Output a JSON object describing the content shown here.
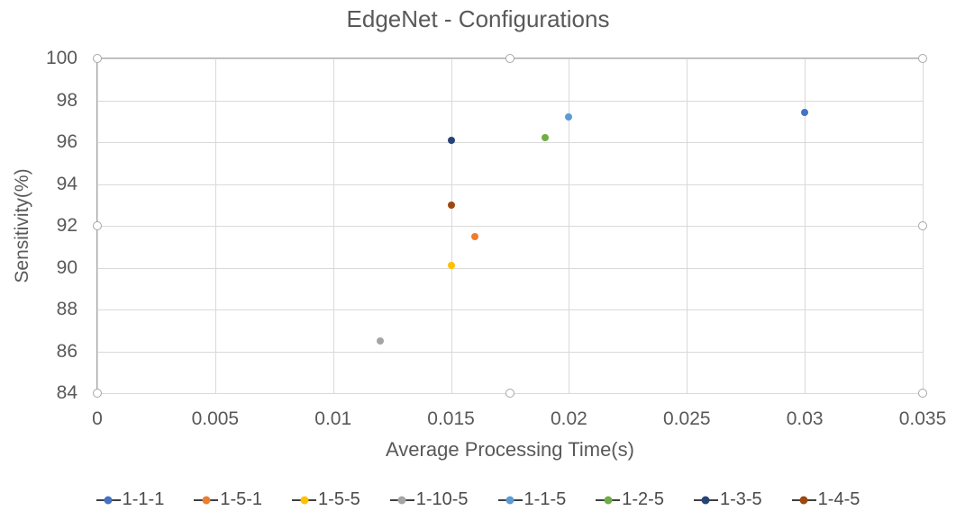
{
  "chart_data": {
    "type": "scatter",
    "title": "EdgeNet - Configurations",
    "xlabel": "Average Processing Time(s)",
    "ylabel": "Sensitivity(%)",
    "xlim": [
      0,
      0.035
    ],
    "ylim": [
      84,
      100
    ],
    "x_tick_values": [
      0,
      0.005,
      0.01,
      0.015,
      0.02,
      0.025,
      0.03,
      0.035
    ],
    "x_tick_labels": [
      "0",
      "0.005",
      "0.01",
      "0.015",
      "0.02",
      "0.025",
      "0.03",
      "0.035"
    ],
    "y_tick_values": [
      100,
      98,
      96,
      94,
      92,
      90,
      88,
      86,
      84
    ],
    "y_tick_labels": [
      "100",
      "98",
      "96",
      "94",
      "92",
      "90",
      "88",
      "86",
      "84"
    ],
    "grid": true,
    "legend_position": "bottom",
    "series": [
      {
        "name": "1-1-1",
        "color": "#4472C4",
        "points": [
          [
            0.03,
            97.4
          ]
        ]
      },
      {
        "name": "1-5-1",
        "color": "#ED7D31",
        "points": [
          [
            0.016,
            91.5
          ]
        ]
      },
      {
        "name": "1-5-5",
        "color": "#FFC000",
        "points": [
          [
            0.015,
            90.1
          ]
        ]
      },
      {
        "name": "1-10-5",
        "color": "#A5A5A5",
        "points": [
          [
            0.012,
            86.5
          ]
        ]
      },
      {
        "name": "1-1-5",
        "color": "#5B9BD5",
        "points": [
          [
            0.02,
            97.2
          ]
        ]
      },
      {
        "name": "1-2-5",
        "color": "#70AD47",
        "points": [
          [
            0.019,
            96.2
          ]
        ]
      },
      {
        "name": "1-3-5",
        "color": "#264478",
        "points": [
          [
            0.015,
            96.1
          ]
        ]
      },
      {
        "name": "1-4-5",
        "color": "#9E480E",
        "points": [
          [
            0.015,
            93.0
          ]
        ]
      }
    ]
  },
  "style": {
    "gridline_color": "#d9d9d9",
    "border_color": "#a6a6a6",
    "text_color": "#595959",
    "legend_text_color": "#4a4a4a",
    "legend_line_color": "#404040",
    "background": "#ffffff"
  },
  "selection": {
    "selected_element": "plot-area",
    "handle_count": 8
  }
}
